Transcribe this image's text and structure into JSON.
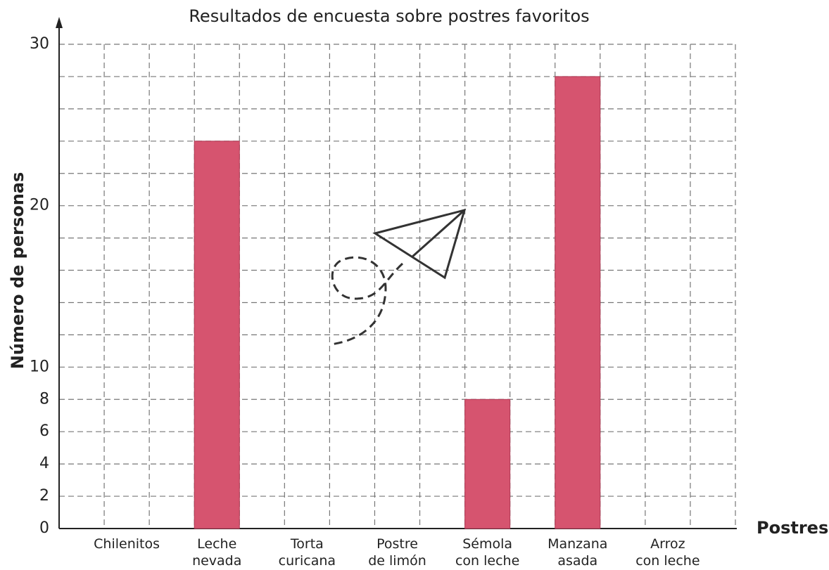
{
  "chart_data": {
    "type": "bar",
    "title": "Resultados de encuesta sobre postres favoritos",
    "x_label": "Postres",
    "y_label": "Número de personas",
    "categories": [
      [
        "Chilenitos"
      ],
      [
        "Leche",
        "nevada"
      ],
      [
        "Torta",
        "curicana"
      ],
      [
        "Postre",
        "de limón"
      ],
      [
        "Sémola",
        "con leche"
      ],
      [
        "Manzana",
        "asada"
      ],
      [
        "Arroz",
        "con leche"
      ]
    ],
    "values": [
      0,
      24,
      0,
      0,
      8,
      28,
      0
    ],
    "color": "#d6546f",
    "ylim": [
      0,
      30
    ],
    "yticks": [
      0,
      2,
      4,
      6,
      8,
      10,
      20,
      30
    ],
    "y_minor_ticks": [
      12,
      14,
      16,
      18,
      22,
      24,
      26,
      28
    ],
    "grid": true
  }
}
